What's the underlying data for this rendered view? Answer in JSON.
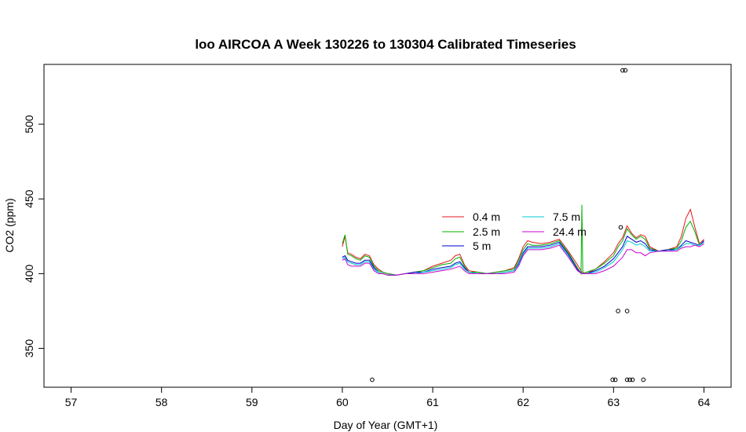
{
  "chart_data": {
    "type": "line",
    "title": "loo AIRCOA A  Week 130226 to 130304  Calibrated Timeseries",
    "xlabel": "Day of Year (GMT+1)",
    "ylabel": "CO2 (ppm)",
    "xlim": [
      56.7,
      64.3
    ],
    "ylim": [
      324,
      540
    ],
    "xticks": [
      57,
      58,
      59,
      60,
      61,
      62,
      63,
      64
    ],
    "yticks": [
      350,
      400,
      450,
      500
    ],
    "legend_placement": "center-right",
    "grid": false,
    "series": [
      {
        "name": "0.4 m",
        "color": "#e41a1c",
        "x": [
          60.0,
          60.03,
          60.06,
          60.1,
          60.15,
          60.2,
          60.25,
          60.3,
          60.35,
          60.4,
          60.45,
          60.5,
          60.6,
          60.7,
          60.8,
          60.9,
          61.0,
          61.1,
          61.2,
          61.25,
          61.3,
          61.35,
          61.4,
          61.5,
          61.6,
          61.7,
          61.8,
          61.9,
          61.95,
          62.0,
          62.05,
          62.1,
          62.2,
          62.3,
          62.4,
          62.5,
          62.6,
          62.65,
          62.7,
          62.8,
          62.9,
          63.0,
          63.05,
          63.1,
          63.15,
          63.2,
          63.25,
          63.3,
          63.35,
          63.4,
          63.5,
          63.6,
          63.7,
          63.75,
          63.8,
          63.85,
          63.9,
          63.95,
          64.0
        ],
        "y": [
          418,
          425,
          414,
          413,
          411,
          410,
          413,
          412,
          406,
          403,
          401,
          400,
          399,
          400,
          401,
          402,
          405,
          407,
          409,
          412,
          413,
          406,
          402,
          401,
          400,
          401,
          402,
          404,
          410,
          418,
          422,
          421,
          420,
          421,
          423,
          415,
          406,
          401,
          400,
          403,
          408,
          414,
          420,
          424,
          432,
          427,
          424,
          426,
          425,
          418,
          415,
          416,
          418,
          425,
          437,
          443,
          431,
          420,
          423
        ]
      },
      {
        "name": "2.5 m",
        "color": "#00b000",
        "x": [
          60.0,
          60.03,
          60.06,
          60.1,
          60.15,
          60.2,
          60.25,
          60.3,
          60.35,
          60.4,
          60.45,
          60.5,
          60.6,
          60.7,
          60.8,
          60.9,
          61.0,
          61.1,
          61.2,
          61.25,
          61.3,
          61.35,
          61.4,
          61.5,
          61.6,
          61.7,
          61.8,
          61.9,
          61.95,
          62.0,
          62.05,
          62.1,
          62.2,
          62.3,
          62.4,
          62.5,
          62.6,
          62.64,
          62.65,
          62.66,
          62.7,
          62.8,
          62.9,
          63.0,
          63.05,
          63.1,
          63.15,
          63.2,
          63.25,
          63.3,
          63.35,
          63.4,
          63.5,
          63.6,
          63.7,
          63.75,
          63.8,
          63.85,
          63.9,
          63.95,
          64.0
        ],
        "y": [
          420,
          426,
          413,
          412,
          410,
          409,
          412,
          411,
          405,
          402,
          401,
          400,
          399,
          400,
          401,
          402,
          404,
          406,
          407,
          410,
          411,
          405,
          401,
          401,
          400,
          401,
          402,
          403,
          409,
          416,
          420,
          419,
          419,
          420,
          422,
          414,
          404,
          400,
          446,
          400,
          401,
          403,
          407,
          412,
          418,
          422,
          430,
          426,
          423,
          425,
          423,
          417,
          415,
          416,
          417,
          422,
          431,
          435,
          428,
          419,
          422
        ]
      },
      {
        "name": "5 m",
        "color": "#0000cc",
        "x": [
          60.0,
          60.03,
          60.06,
          60.1,
          60.15,
          60.2,
          60.25,
          60.3,
          60.35,
          60.4,
          60.45,
          60.5,
          60.6,
          60.7,
          60.8,
          60.9,
          61.0,
          61.1,
          61.2,
          61.25,
          61.3,
          61.35,
          61.4,
          61.5,
          61.6,
          61.7,
          61.8,
          61.9,
          61.95,
          62.0,
          62.05,
          62.1,
          62.2,
          62.3,
          62.4,
          62.5,
          62.6,
          62.65,
          62.7,
          62.8,
          62.9,
          63.0,
          63.05,
          63.1,
          63.15,
          63.2,
          63.25,
          63.3,
          63.35,
          63.4,
          63.5,
          63.6,
          63.7,
          63.75,
          63.8,
          63.85,
          63.9,
          63.95,
          64.0
        ],
        "y": [
          411,
          412,
          409,
          408,
          407,
          407,
          409,
          409,
          404,
          401,
          400,
          399,
          399,
          400,
          401,
          401,
          403,
          404,
          405,
          407,
          408,
          404,
          401,
          400,
          400,
          400,
          401,
          402,
          407,
          414,
          418,
          418,
          418,
          419,
          421,
          413,
          403,
          400,
          400,
          402,
          405,
          410,
          414,
          418,
          425,
          423,
          421,
          422,
          420,
          416,
          415,
          416,
          416,
          419,
          422,
          421,
          420,
          419,
          422
        ]
      },
      {
        "name": "7.5 m",
        "color": "#00cccc",
        "x": [
          60.0,
          60.03,
          60.06,
          60.1,
          60.15,
          60.2,
          60.25,
          60.3,
          60.35,
          60.4,
          60.45,
          60.5,
          60.6,
          60.7,
          60.8,
          60.9,
          61.0,
          61.1,
          61.2,
          61.25,
          61.3,
          61.35,
          61.4,
          61.5,
          61.6,
          61.7,
          61.8,
          61.9,
          61.95,
          62.0,
          62.05,
          62.1,
          62.2,
          62.3,
          62.4,
          62.5,
          62.6,
          62.65,
          62.7,
          62.8,
          62.9,
          63.0,
          63.05,
          63.1,
          63.15,
          63.2,
          63.25,
          63.3,
          63.35,
          63.4,
          63.5,
          63.6,
          63.7,
          63.75,
          63.8,
          63.85,
          63.9,
          63.95,
          64.0
        ],
        "y": [
          410,
          411,
          408,
          407,
          406,
          406,
          408,
          408,
          403,
          401,
          400,
          399,
          399,
          400,
          400,
          401,
          402,
          403,
          404,
          406,
          407,
          403,
          401,
          400,
          400,
          400,
          401,
          402,
          406,
          413,
          417,
          417,
          417,
          418,
          420,
          412,
          402,
          400,
          400,
          401,
          404,
          408,
          412,
          416,
          422,
          421,
          419,
          420,
          418,
          415,
          415,
          415,
          416,
          418,
          420,
          420,
          419,
          419,
          421
        ]
      },
      {
        "name": "24.4 m",
        "color": "#cc00cc",
        "x": [
          60.0,
          60.03,
          60.06,
          60.1,
          60.15,
          60.2,
          60.25,
          60.3,
          60.35,
          60.4,
          60.45,
          60.5,
          60.6,
          60.7,
          60.8,
          60.9,
          61.0,
          61.1,
          61.2,
          61.25,
          61.3,
          61.35,
          61.4,
          61.5,
          61.6,
          61.7,
          61.8,
          61.9,
          61.95,
          62.0,
          62.05,
          62.1,
          62.2,
          62.3,
          62.4,
          62.5,
          62.6,
          62.65,
          62.7,
          62.8,
          62.9,
          63.0,
          63.05,
          63.1,
          63.15,
          63.2,
          63.25,
          63.3,
          63.35,
          63.4,
          63.5,
          63.6,
          63.7,
          63.75,
          63.8,
          63.85,
          63.9,
          63.95,
          64.0
        ],
        "y": [
          409,
          410,
          406,
          405,
          405,
          405,
          407,
          407,
          402,
          400,
          400,
          399,
          399,
          400,
          400,
          400,
          401,
          402,
          403,
          404,
          405,
          402,
          400,
          400,
          400,
          400,
          400,
          401,
          405,
          412,
          416,
          416,
          416,
          417,
          419,
          411,
          402,
          400,
          400,
          400,
          402,
          405,
          408,
          411,
          416,
          416,
          414,
          414,
          412,
          414,
          415,
          415,
          415,
          417,
          418,
          418,
          419,
          418,
          420
        ]
      }
    ],
    "outliers": {
      "x": [
        60.33,
        62.99,
        63.02,
        63.05,
        63.08,
        63.1,
        63.13,
        63.15,
        63.15,
        63.18,
        63.21,
        63.33
      ],
      "y": [
        329,
        329,
        329,
        375,
        431,
        536,
        536,
        375,
        329,
        329,
        329,
        329
      ]
    }
  }
}
